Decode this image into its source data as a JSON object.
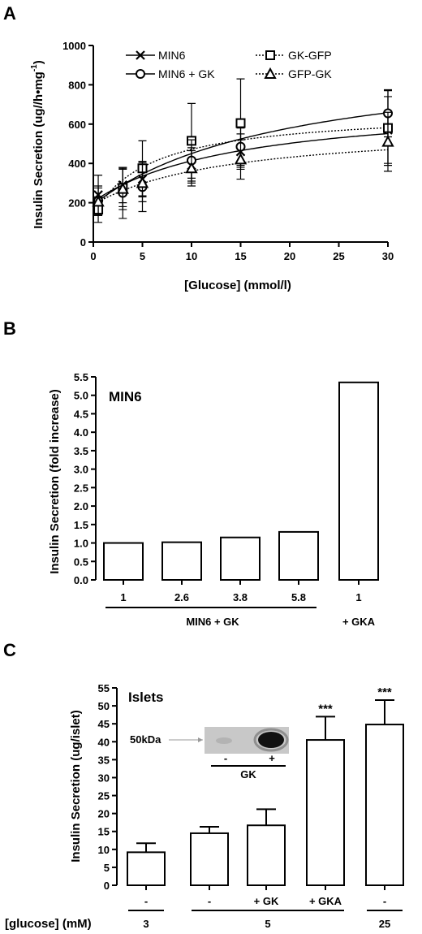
{
  "chart_data": [
    {
      "panel": "A",
      "type": "line",
      "xlabel": "[Glucose] (mmol/l)",
      "ylabel_main": "Insulin Secretion (ug//h•mg",
      "ylabel_sup": "-1",
      "ylabel_end": ")",
      "xlim": [
        0,
        30
      ],
      "ylim": [
        0,
        1000
      ],
      "xticks": [
        "0",
        "5",
        "10",
        "15",
        "20",
        "25",
        "30"
      ],
      "yticks": [
        "0",
        "200",
        "400",
        "600",
        "800",
        "1000"
      ],
      "series": [
        {
          "name": "MIN6",
          "marker": "x",
          "line": "solid",
          "x": [
            0.5,
            3,
            5,
            10,
            15,
            30
          ],
          "y": [
            240,
            290,
            320,
            390,
            460,
            570
          ],
          "err": [
            100,
            90,
            90,
            90,
            90,
            170
          ],
          "curve": {
            "base": 205,
            "vmax": 520,
            "k": 15
          }
        },
        {
          "name": "GK-GFP",
          "marker": "square",
          "line": "dotted",
          "x": [
            0.5,
            3,
            5,
            10,
            15,
            30
          ],
          "y": [
            165,
            275,
            375,
            515,
            605,
            580
          ],
          "err": [
            65,
            95,
            140,
            190,
            225,
            190
          ],
          "curve": {
            "base": 140,
            "vmax": 530,
            "k": 6
          }
        },
        {
          "name": "MIN6 + GK",
          "marker": "circle",
          "line": "solid",
          "x": [
            0.5,
            3,
            5,
            10,
            15,
            30
          ],
          "y": [
            210,
            250,
            280,
            415,
            485,
            655
          ],
          "err": [
            75,
            130,
            125,
            105,
            95,
            120
          ],
          "curve": {
            "base": 190,
            "vmax": 780,
            "k": 20
          }
        },
        {
          "name": "GFP-GK",
          "marker": "triangle",
          "line": "dotted",
          "x": [
            0.5,
            3,
            5,
            10,
            15,
            30
          ],
          "y": [
            205,
            270,
            300,
            375,
            420,
            510
          ],
          "err": [
            70,
            105,
            95,
            90,
            100,
            150
          ],
          "curve": {
            "base": 190,
            "vmax": 410,
            "k": 14
          }
        }
      ],
      "legend": [
        "MIN6",
        "GK-GFP",
        "MIN6 + GK",
        "GFP-GK"
      ]
    },
    {
      "panel": "B",
      "type": "bar",
      "inset_title": "MIN6",
      "ylabel": "Insulin Secretion (fold increase)",
      "ylim": [
        0,
        5.5
      ],
      "yticks": [
        "0.0",
        "0.5",
        "1.0",
        "1.5",
        "2.0",
        "2.5",
        "3.0",
        "3.5",
        "4.0",
        "4.5",
        "5.0",
        "5.5"
      ],
      "categories": [
        "1",
        "2.6",
        "3.8",
        "5.8",
        "1"
      ],
      "values": [
        1.0,
        1.02,
        1.15,
        1.3,
        5.35
      ],
      "group_labels": [
        "MIN6 + GK",
        "+ GKA"
      ]
    },
    {
      "panel": "C",
      "type": "bar",
      "inset_title": "Islets",
      "ylabel": "Insulin Secretion (ug/islet)",
      "ylim": [
        0,
        55
      ],
      "yticks": [
        "0",
        "5",
        "10",
        "15",
        "20",
        "25",
        "30",
        "35",
        "40",
        "45",
        "50",
        "55"
      ],
      "categories": [
        "-",
        "-",
        "+ GK",
        "+ GKA",
        "-"
      ],
      "values": [
        9.2,
        14.5,
        16.7,
        40.5,
        44.8
      ],
      "errors": [
        2.5,
        1.8,
        4.5,
        6.5,
        6.8
      ],
      "significance": [
        "",
        "",
        "",
        "***",
        "***"
      ],
      "glucose_label": "[glucose] (mM)",
      "glucose_groups": [
        "3",
        "5",
        "25"
      ],
      "blot": {
        "marker": "50kDa",
        "lanes": [
          "-",
          "+"
        ],
        "label": "GK"
      }
    }
  ]
}
